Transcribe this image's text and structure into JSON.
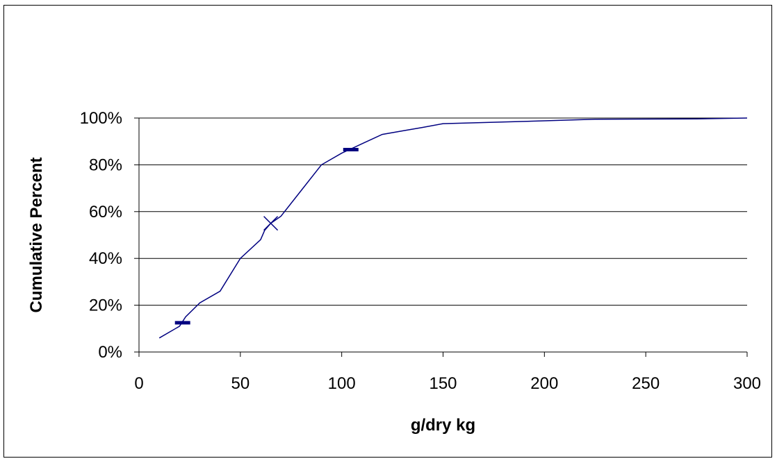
{
  "chart_data": {
    "type": "line",
    "xlabel": "g/dry kg",
    "ylabel": "Cumulative Percent",
    "xlim": [
      0,
      300
    ],
    "ylim": [
      0,
      100
    ],
    "x_ticks": [
      "0",
      "50",
      "100",
      "150",
      "200",
      "250",
      "300"
    ],
    "y_ticks": [
      "0%",
      "20%",
      "40%",
      "60%",
      "80%",
      "100%"
    ],
    "grid": "horizontal",
    "legend": "none",
    "series": [
      {
        "x": [
          10,
          20,
          23,
          30,
          40,
          50,
          60,
          62,
          65,
          70,
          80,
          90,
          100,
          110,
          120,
          130,
          140,
          150,
          200,
          225,
          275,
          300
        ],
        "y": [
          6,
          11,
          15,
          21,
          26,
          40,
          48,
          52,
          55,
          58,
          69,
          80,
          85,
          89,
          93,
          94.5,
          96,
          97.6,
          98.8,
          99.5,
          99.6,
          100
        ],
        "color": "#000080"
      }
    ],
    "markers": [
      {
        "shape": "dash",
        "x": 21.5,
        "y": 12.5
      },
      {
        "shape": "cross",
        "x": 65,
        "y": 55
      },
      {
        "shape": "dash",
        "x": 104.5,
        "y": 86.5
      }
    ],
    "line_color": "#000080",
    "grid_color": "#000000"
  }
}
